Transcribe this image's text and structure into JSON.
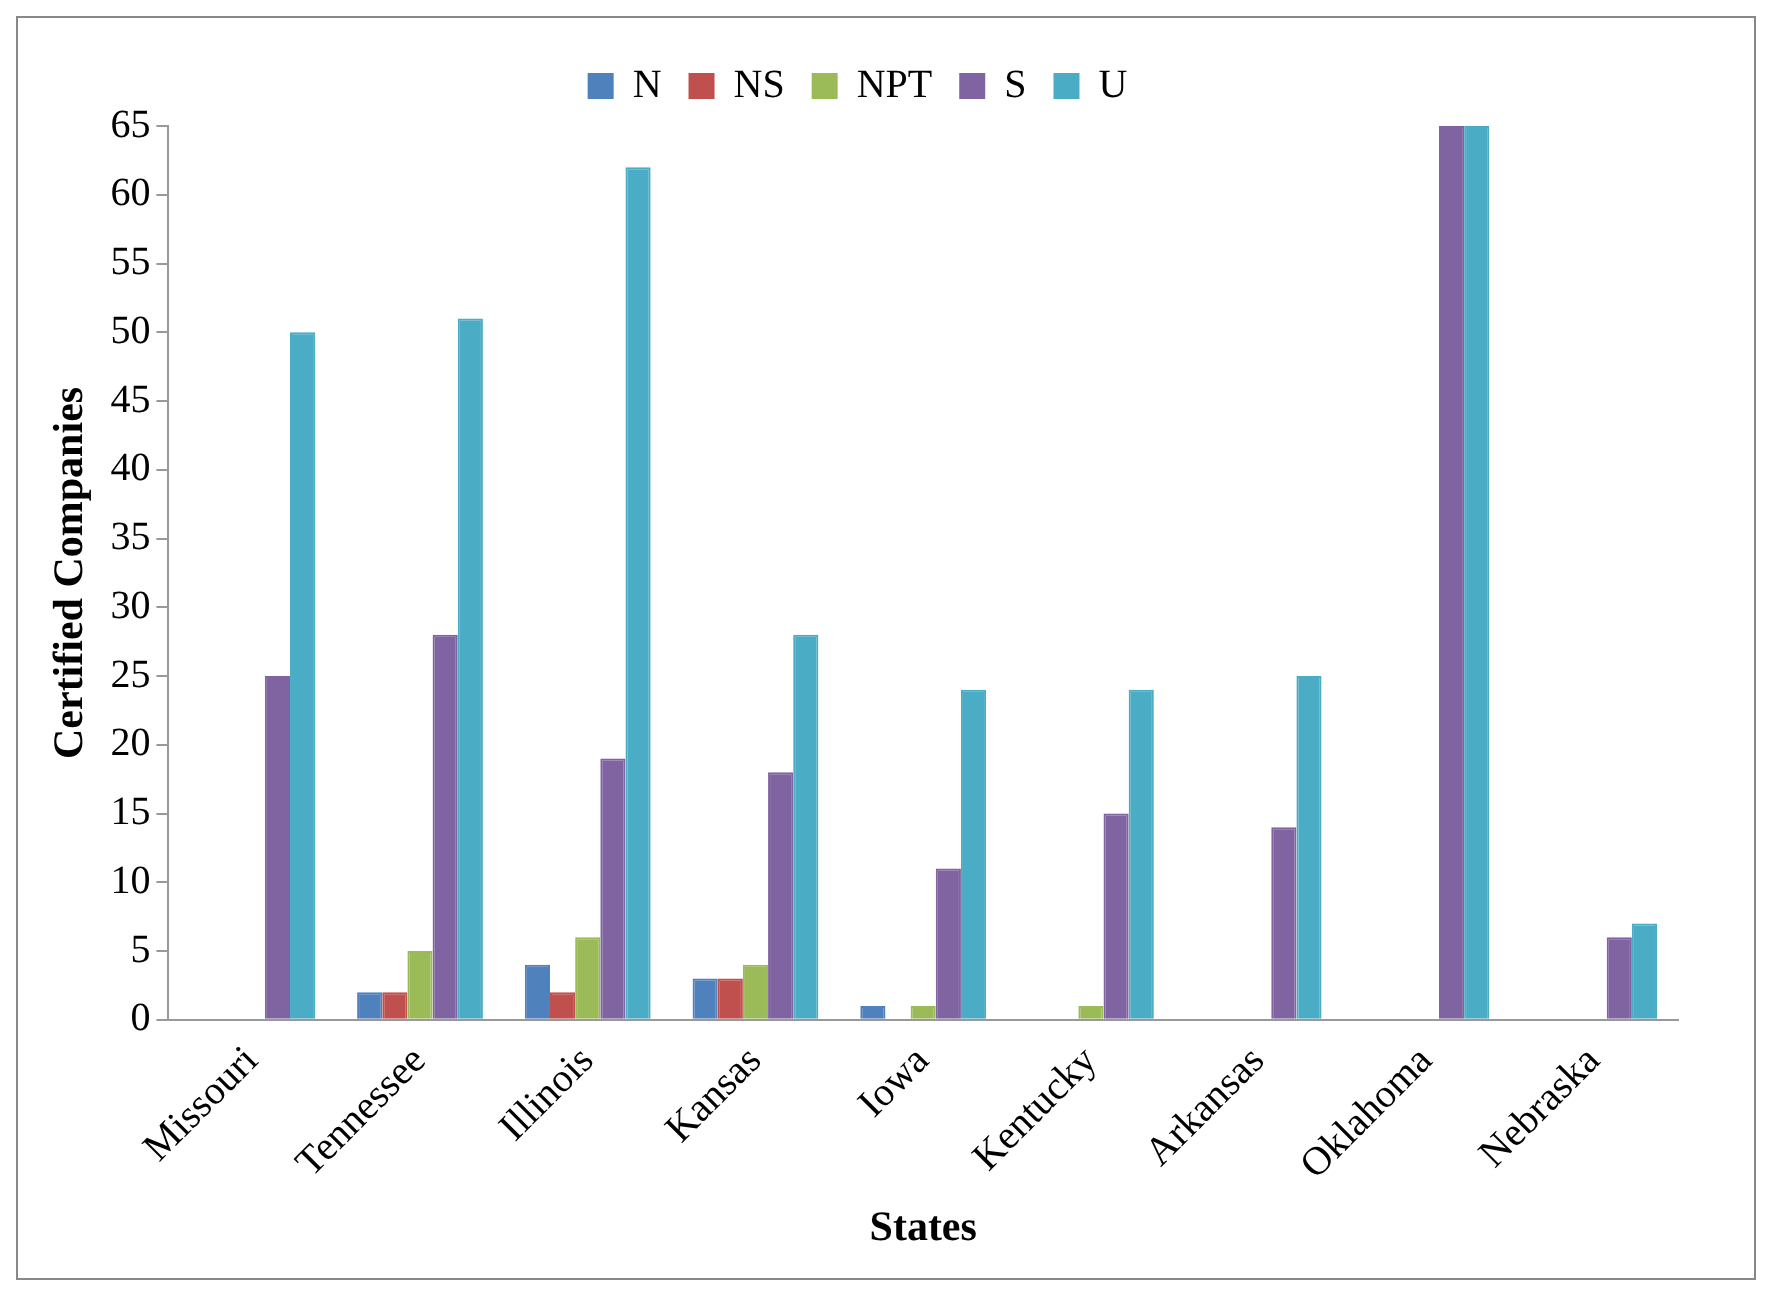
{
  "chart_data": {
    "type": "bar",
    "xlabel": "States",
    "ylabel": "Certified Companies",
    "categories": [
      "Missouri",
      "Tennessee",
      "Illinois",
      "Kansas",
      "Iowa",
      "Kentucky",
      "Arkansas",
      "Oklahoma",
      "Nebraska"
    ],
    "series": [
      {
        "name": "N",
        "color": "#4f81bd",
        "values": [
          0,
          2,
          4,
          3,
          1,
          0,
          0,
          0,
          0
        ]
      },
      {
        "name": "NS",
        "color": "#c0504d",
        "values": [
          0,
          2,
          2,
          3,
          0,
          0,
          0,
          0,
          0
        ]
      },
      {
        "name": "NPT",
        "color": "#9bbb59",
        "values": [
          0,
          5,
          6,
          4,
          1,
          1,
          0,
          0,
          0
        ]
      },
      {
        "name": "S",
        "color": "#8064a2",
        "values": [
          25,
          28,
          19,
          18,
          11,
          15,
          14,
          65,
          6
        ]
      },
      {
        "name": "U",
        "color": "#4bacc6",
        "values": [
          50,
          51,
          62,
          28,
          24,
          24,
          25,
          65,
          7
        ]
      }
    ],
    "ylim": [
      0,
      65
    ],
    "yticks": [
      0,
      5,
      10,
      15,
      20,
      25,
      30,
      35,
      40,
      45,
      50,
      55,
      60,
      65
    ],
    "grid": false,
    "legend": "top"
  }
}
